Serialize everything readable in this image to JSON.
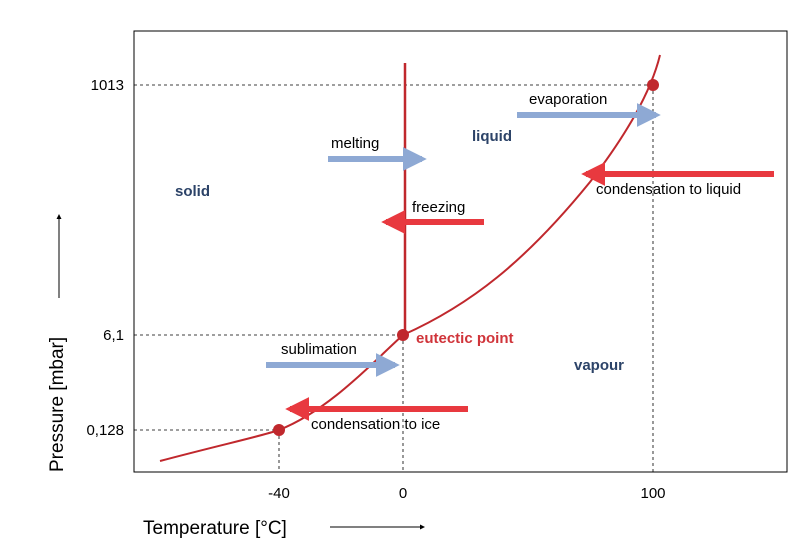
{
  "axes": {
    "x_label": "Temperature [°C]",
    "y_label": "Pressure [mbar]",
    "x_ticks": [
      "-40",
      "0",
      "100"
    ],
    "y_ticks": [
      "1013",
      "6,1",
      "0,128"
    ]
  },
  "regions": {
    "solid": "solid",
    "liquid": "liquid",
    "vapour": "vapour"
  },
  "points": {
    "eutectic": "eutectic point"
  },
  "processes": {
    "melting": "melting",
    "freezing": "freezing",
    "evaporation": "evaporation",
    "condensation_liquid": "condensation to liquid",
    "sublimation": "sublimation",
    "condensation_ice": "condensation to ice"
  },
  "colors": {
    "curve": "#c0282d",
    "arrow_blue": "#8ea9d4",
    "arrow_red": "#e8393f",
    "region_text": "#2c4368",
    "point_text": "#d0343a",
    "grid": "#000000"
  }
}
